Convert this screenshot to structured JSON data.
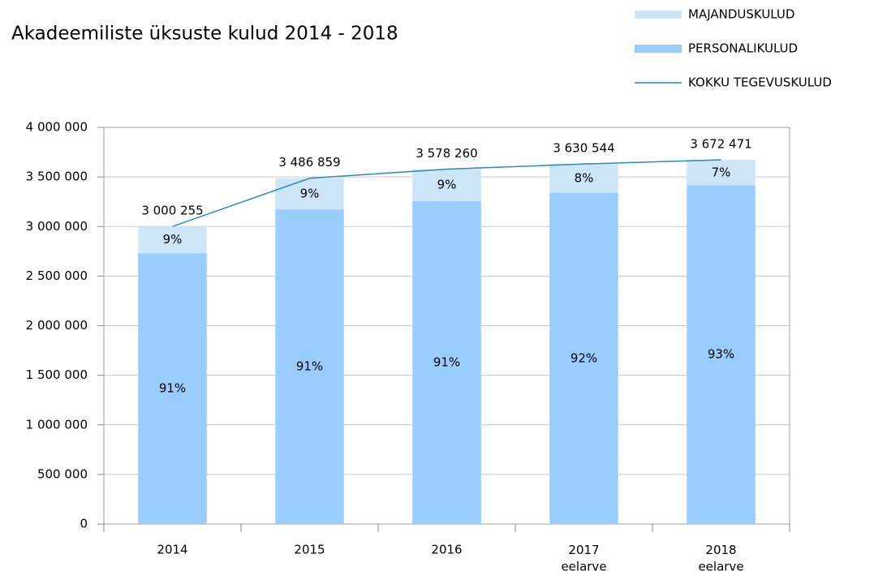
{
  "chart_data": {
    "type": "bar",
    "title": "Akadeemiliste üksuste kulud 2014 - 2018",
    "categories": [
      "2014",
      "2015",
      "2016",
      "2017\neelarve",
      "2018\neelarve"
    ],
    "series": [
      {
        "name": "PERSONALIKULUD",
        "type": "bar",
        "color": "#99ccff",
        "values": [
          2730232,
          3173042,
          3256217,
          3340100,
          3415398
        ],
        "percent_labels": [
          "91%",
          "91%",
          "91%",
          "92%",
          "93%"
        ]
      },
      {
        "name": "MAJANDUSKULUD",
        "type": "bar",
        "color": "#cce6f7",
        "values": [
          270023,
          313817,
          322043,
          290444,
          257073
        ],
        "percent_labels": [
          "9%",
          "9%",
          "9%",
          "8%",
          "7%"
        ]
      },
      {
        "name": "KOKKU TEGEVUSKULUD",
        "type": "line",
        "color": "#2a8ab8",
        "values": [
          3000255,
          3486859,
          3578260,
          3630544,
          3672471
        ],
        "value_labels": [
          "3 000 255",
          "3 486 859",
          "3 578 260",
          "3 630 544",
          "3 672 471"
        ]
      }
    ],
    "legend_order": [
      1,
      0,
      2
    ],
    "ylim": [
      0,
      4000000
    ],
    "yticks": [
      0,
      {
        "value": 500000,
        "label": "500 000"
      },
      {
        "value": 1000000,
        "label": "1 000 000"
      },
      {
        "value": 1500000,
        "label": "1 500 000"
      },
      {
        "value": 2000000,
        "label": "2 000 000"
      },
      {
        "value": 2500000,
        "label": "2 500 000"
      },
      {
        "value": 3000000,
        "label": "3 000 000"
      },
      {
        "value": 3500000,
        "label": "3 500 000"
      },
      {
        "value": 4000000,
        "label": "4 000 000"
      }
    ],
    "grid": true
  }
}
